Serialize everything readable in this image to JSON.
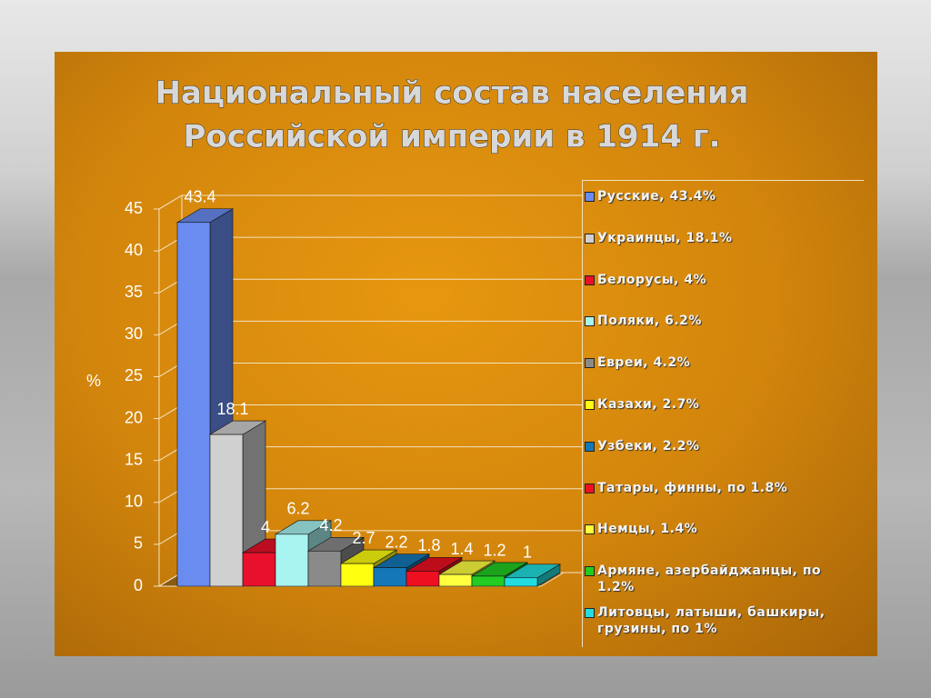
{
  "chart_data": {
    "type": "bar3d",
    "title": [
      "Национальный состав населения",
      "Российской империи в 1914 г."
    ],
    "y_label": "%",
    "ylim": [
      0,
      45
    ],
    "yticks": [
      0,
      5,
      10,
      15,
      20,
      25,
      30,
      35,
      40,
      45
    ],
    "grid": true,
    "legend": "right",
    "series": [
      {
        "name": "Русские, 43.4%",
        "color": "#6a8cf0",
        "values": [
          43.4
        ]
      },
      {
        "name": "Украинцы, 18.1%",
        "color": "#d0d0d0",
        "values": [
          18.1
        ]
      },
      {
        "name": "Белорусы, 4%",
        "color": "#e8102a",
        "values": [
          4
        ]
      },
      {
        "name": "Поляки, 6.2%",
        "color": "#a8f4f0",
        "values": [
          6.2
        ]
      },
      {
        "name": "Евреи, 4.2%",
        "color": "#8a8a8a",
        "values": [
          4.2
        ]
      },
      {
        "name": "Казахи, 2.7%",
        "color": "#ffff10",
        "values": [
          2.7
        ]
      },
      {
        "name": "Узбеки, 2.2%",
        "color": "#1478b8",
        "values": [
          2.2
        ]
      },
      {
        "name": "Татары, финны, по 1.8%",
        "color": "#ee1020",
        "values": [
          1.8
        ]
      },
      {
        "name": "Немцы, 1.4%",
        "color": "#ffff40",
        "values": [
          1.4
        ]
      },
      {
        "name": "Армяне, азербайджанцы, по 1.2%",
        "color": "#22cc22",
        "values": [
          1.2
        ]
      },
      {
        "name": "Литовцы, латыши, башкиры, грузины, по 1%",
        "color": "#22dde0",
        "values": [
          1
        ]
      }
    ]
  }
}
